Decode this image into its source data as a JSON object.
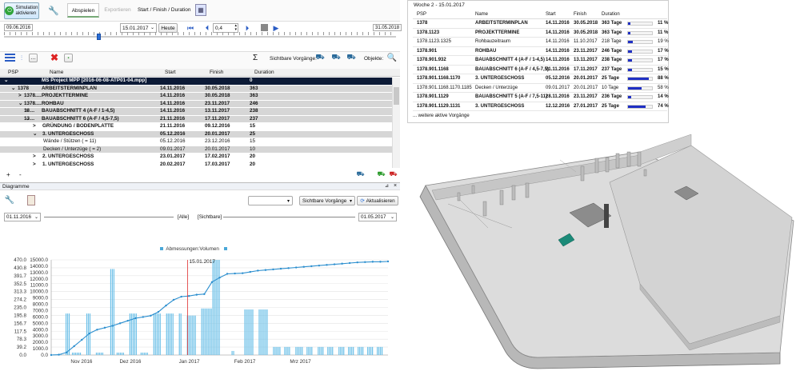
{
  "toolbar": {
    "sim_button_line1": "Simulation",
    "sim_button_line2": "aktivieren",
    "tab_play": "Abspielen",
    "tab_export": "Exportieren",
    "start_finish_label": "Start / Finish / Duration",
    "start_date": "09.06.2016",
    "end_date": "31.05.2018",
    "current_date": "15.01.2017",
    "today_button": "Heute",
    "speed_value": "0,4"
  },
  "grid_toolbar": {
    "visible_tasks_label": "Sichtbare Vorgänge:",
    "objects_label": "Objekte:",
    "sigma": "Σ"
  },
  "grid": {
    "columns": [
      "PSP",
      "Name",
      "Start",
      "Finish",
      "Duration"
    ],
    "rows": [
      {
        "toggle": "⌄",
        "psp": "",
        "name": "MS Project MPP [2016-06-08-ATP01-04.mpp]",
        "start": "",
        "finish": "",
        "duration": "0",
        "style": "selected",
        "indent": 0
      },
      {
        "toggle": "⌄",
        "psp": "1378",
        "name": "ARBEITSTERMINPLAN",
        "start": "14.11.2016",
        "finish": "30.05.2018",
        "duration": "363",
        "style": "gray-bold",
        "indent": 1
      },
      {
        "toggle": ">",
        "psp": "1378.…",
        "name": "PROJEKTTERMINE",
        "start": "14.11.2016",
        "finish": "30.05.2018",
        "duration": "363",
        "style": "gray-bold",
        "indent": 2
      },
      {
        "toggle": "⌄",
        "psp": "1378.…",
        "name": "ROHBAU",
        "start": "14.11.2016",
        "finish": "23.11.2017",
        "duration": "246",
        "style": "gray-bold",
        "indent": 2
      },
      {
        "toggle": ">",
        "psp": "13…",
        "name": "BAUABSCHNITT 4 (A-F / 1-4,5)",
        "start": "14.11.2016",
        "finish": "13.11.2017",
        "duration": "238",
        "style": "gray-bold",
        "indent": 3
      },
      {
        "toggle": "⌄",
        "psp": "13…",
        "name": "BAUABSCHNITT 6 (A-F / 4,5-7,5)",
        "start": "21.11.2016",
        "finish": "17.11.2017",
        "duration": "237",
        "style": "gray-bold",
        "indent": 3
      },
      {
        "toggle": ">",
        "psp": "",
        "name": "GRÜNDUNG / BODENPLATTE",
        "start": "21.11.2016",
        "finish": "09.12.2016",
        "duration": "15",
        "style": "bold",
        "indent": 4
      },
      {
        "toggle": "⌄",
        "psp": "",
        "name": "3. UNTERGESCHOSS",
        "start": "05.12.2016",
        "finish": "20.01.2017",
        "duration": "25",
        "style": "gray-bold",
        "indent": 4
      },
      {
        "toggle": "",
        "psp": "",
        "name": "Wände / Stützen ( = 11)",
        "start": "05.12.2016",
        "finish": "23.12.2016",
        "duration": "15",
        "style": "normal",
        "indent": 5
      },
      {
        "toggle": "",
        "psp": "",
        "name": "Decken / Unterzüge ( = 2)",
        "start": "09.01.2017",
        "finish": "20.01.2017",
        "duration": "10",
        "style": "gray",
        "indent": 5
      },
      {
        "toggle": ">",
        "psp": "",
        "name": "2. UNTERGESCHOSS",
        "start": "23.01.2017",
        "finish": "17.02.2017",
        "duration": "20",
        "style": "bold",
        "indent": 4
      },
      {
        "toggle": ">",
        "psp": "",
        "name": "1. UNTERGESCHOSS",
        "start": "20.02.2017",
        "finish": "17.03.2017",
        "duration": "20",
        "style": "bold",
        "indent": 4
      }
    ]
  },
  "diagram": {
    "panel_title": "Diagramme",
    "visible_tasks_dropdown": "Sichtbare Vorgänge",
    "refresh_button": "Aktualisieren",
    "from_date": "01.11.2016",
    "to_date": "01.05.2017",
    "filter_all": "[Alle]",
    "filter_visible": "[Sichtbare]",
    "legend": "Abmessungen:Volumen",
    "current_marker": "15.01.2017"
  },
  "chart_data": {
    "type": "bar",
    "title": "",
    "legend": [
      "Abmessungen:Volumen"
    ],
    "left_axis_ticks": [
      "470.0",
      "430.8",
      "391.7",
      "352.5",
      "313.3",
      "274.2",
      "235.0",
      "195.8",
      "156.7",
      "117.5",
      "78.3",
      "39.2",
      "0.0"
    ],
    "right_axis_ticks": [
      "15000.0",
      "14000.0",
      "13000.0",
      "12000.0",
      "11000.0",
      "10000.0",
      "9000.0",
      "8000.0",
      "7000.0",
      "6000.0",
      "5000.0",
      "4000.0",
      "3000.0",
      "2000.0",
      "1000.0",
      "0.0"
    ],
    "x_ticks": [
      "Nov 2016",
      "Dez 2016",
      "Jan 2017",
      "Feb 2017",
      "Mrz 2017"
    ],
    "bar_values_left_axis": [
      0,
      3,
      3,
      0,
      0,
      3,
      3,
      0,
      0,
      205,
      205,
      205,
      0,
      12,
      12,
      12,
      12,
      12,
      12,
      0,
      0,
      0,
      205,
      205,
      205,
      0,
      0,
      0,
      12,
      12,
      12,
      12,
      12,
      0,
      0,
      0,
      0,
      425,
      425,
      425,
      0,
      12,
      12,
      12,
      12,
      12,
      0,
      0,
      0,
      205,
      205,
      205,
      205,
      205,
      0,
      0,
      12,
      12,
      12,
      12,
      12,
      0,
      0,
      0,
      205,
      205,
      205,
      205,
      205,
      0,
      0,
      0,
      205,
      205,
      205,
      205,
      205,
      0,
      0,
      0,
      205,
      205,
      0,
      0,
      0,
      195,
      195,
      195,
      195,
      195,
      195,
      0,
      0,
      0,
      230,
      230,
      230,
      230,
      230,
      230,
      230,
      470,
      470,
      470,
      470,
      470,
      0,
      0,
      0,
      0,
      0,
      0,
      0,
      20,
      20,
      0,
      0,
      0,
      0,
      0,
      0,
      225,
      225,
      225,
      225,
      225,
      225,
      0,
      0,
      0,
      225,
      225,
      225,
      225,
      225,
      225,
      0,
      0,
      0,
      40,
      40,
      40,
      40,
      40,
      0,
      0,
      40,
      40,
      40,
      40,
      0,
      0,
      0,
      40,
      40,
      40,
      40,
      40,
      0,
      0,
      40,
      40,
      40,
      40,
      0,
      0,
      0,
      40,
      40,
      40,
      40,
      0,
      0,
      40,
      40,
      40,
      40,
      0,
      0,
      0,
      40,
      40,
      40,
      40,
      0,
      0,
      40,
      40,
      40,
      40,
      0,
      0,
      40,
      40,
      40,
      40,
      0,
      0,
      40,
      40,
      40,
      40,
      0,
      0,
      40,
      40,
      40,
      40,
      0,
      0,
      0
    ],
    "line_values_right_axis": [
      0,
      50,
      400,
      1400,
      2400,
      3400,
      4000,
      4300,
      4600,
      5000,
      5400,
      5800,
      6000,
      6200,
      6800,
      7800,
      8700,
      9200,
      9300,
      9500,
      9600,
      11500,
      12200,
      12800,
      12850,
      12900,
      13100,
      13300,
      13400,
      13500,
      13600,
      13700,
      13800,
      13900,
      14000,
      14100,
      14200,
      14300,
      14400,
      14500,
      14600,
      14650,
      14700,
      14700,
      14750
    ]
  },
  "popup": {
    "title": "Woche 2 - 15.01.2017",
    "columns": [
      "PSP",
      "Name",
      "Start",
      "Finish",
      "Duration"
    ],
    "rows": [
      {
        "psp": "1378",
        "name": "ARBEITSTERMINPLAN",
        "start": "14.11.2016",
        "finish": "30.05.2018",
        "duration": "363 Tage",
        "percent": "11 %",
        "fill": 0.11
      },
      {
        "psp": "1378.1123",
        "name": "PROJEKTTERMINE",
        "start": "14.11.2016",
        "finish": "30.05.2018",
        "duration": "363 Tage",
        "percent": "11 %",
        "fill": 0.11
      },
      {
        "psp": "1378.1123.1325",
        "name": "Rohbauzeitraum",
        "start": "14.11.2016",
        "finish": "11.10.2017",
        "duration": "218 Tage",
        "percent": "19 %",
        "fill": 0.19
      },
      {
        "psp": "1378.901",
        "name": "ROHBAU",
        "start": "14.11.2016",
        "finish": "23.11.2017",
        "duration": "246 Tage",
        "percent": "17 %",
        "fill": 0.17
      },
      {
        "psp": "1378.901.932",
        "name": "BAUABSCHNITT 4 (A-F / 1-4,5)",
        "start": "14.11.2016",
        "finish": "13.11.2017",
        "duration": "238 Tage",
        "percent": "17 %",
        "fill": 0.17
      },
      {
        "psp": "1378.901.1168",
        "name": "BAUABSCHNITT 6 (A-F / 4,5-7,5)",
        "start": "21.11.2016",
        "finish": "17.11.2017",
        "duration": "237 Tage",
        "percent": "15 %",
        "fill": 0.15
      },
      {
        "psp": "1378.901.1168.1170",
        "name": "3. UNTERGESCHOSS",
        "start": "05.12.2016",
        "finish": "20.01.2017",
        "duration": "25 Tage",
        "percent": "88 %",
        "fill": 0.88
      },
      {
        "psp": "1378.901.1168.1170.1185",
        "name": "Decken / Unterzüge",
        "start": "09.01.2017",
        "finish": "20.01.2017",
        "duration": "10 Tage",
        "percent": "58 %",
        "fill": 0.58
      },
      {
        "psp": "1378.901.1129",
        "name": "BAUABSCHNITT 5 (A-F / 7,5-11)",
        "start": "28.11.2016",
        "finish": "23.11.2017",
        "duration": "236 Tage",
        "percent": "14 %",
        "fill": 0.14
      },
      {
        "psp": "1378.901.1129.1131",
        "name": "3. UNTERGESCHOSS",
        "start": "12.12.2016",
        "finish": "27.01.2017",
        "duration": "25 Tage",
        "percent": "74 %",
        "fill": 0.74
      }
    ],
    "more": "... weitere aktive Vorgänge"
  }
}
